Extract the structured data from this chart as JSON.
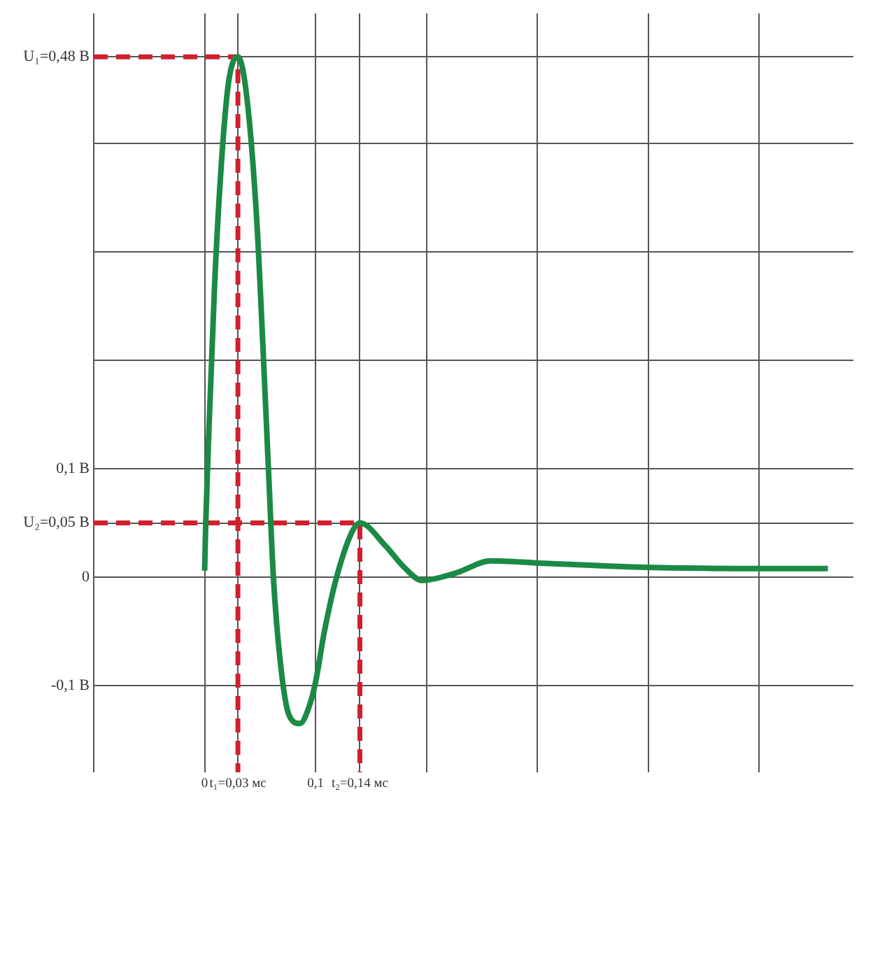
{
  "chart_data": {
    "type": "line",
    "x": [
      0,
      0.001,
      0.004,
      0.009,
      0.015,
      0.0215,
      0.03,
      0.038,
      0.047,
      0.053,
      0.058,
      0.062,
      0.068,
      0.076,
      0.086,
      0.094,
      0.1,
      0.108,
      0.119,
      0.133,
      0.14,
      0.163,
      0.18,
      0.196,
      0.227,
      0.258,
      0.302,
      0.399,
      0.505,
      0.562
    ],
    "series": [
      {
        "color": "#1a8a45",
        "values": [
          0.006,
          0.05,
          0.14,
          0.27,
          0.38,
          0.456,
          0.48,
          0.443,
          0.329,
          0.203,
          0.089,
          0,
          -0.076,
          -0.127,
          -0.135,
          -0.12,
          -0.097,
          -0.05,
          0,
          0.042,
          0.05,
          0.029,
          0.009,
          -0.003,
          0.004,
          0.015,
          0.013,
          0.009,
          0.008,
          0.008
        ]
      },
      {
        "type": "line",
        "color": "#d0202f",
        "line_style": "dashed",
        "x": [
          -0.1,
          0.03,
          0.03
        ],
        "values": [
          0.48,
          0.48,
          -0.18
        ]
      },
      {
        "type": "line",
        "color": "#d0202f",
        "line_style": "dashed",
        "x": [
          -0.1,
          0.14,
          0.14
        ],
        "values": [
          0.05,
          0.05,
          -0.18
        ]
      }
    ],
    "xlim": [
      -0.1,
      0.585
    ],
    "ylim": [
      -0.18,
      0.52
    ],
    "xticks": [
      {
        "value": -0.1,
        "label": null
      },
      {
        "value": 0,
        "label": "0"
      },
      {
        "value": 0.03,
        "label": "t₁=0,03 мс"
      },
      {
        "value": 0.1,
        "label": "0,1"
      },
      {
        "value": 0.14,
        "label": "t₂=0,14 мс"
      },
      {
        "value": 0.2,
        "label": null
      },
      {
        "value": 0.3,
        "label": null
      },
      {
        "value": 0.4,
        "label": null
      },
      {
        "value": 0.5,
        "label": null
      }
    ],
    "yticks": [
      {
        "value": -0.1,
        "label": "-0,1 В"
      },
      {
        "value": 0,
        "label": "0"
      },
      {
        "value": 0.05,
        "label": "U₂=0,05 В"
      },
      {
        "value": 0.1,
        "label": "0,1 В"
      },
      {
        "value": 0.2,
        "label": null
      },
      {
        "value": 0.3,
        "label": null
      },
      {
        "value": 0.4,
        "label": null
      },
      {
        "value": 0.48,
        "label": "U₁=0,48 В"
      }
    ],
    "grid": true
  }
}
